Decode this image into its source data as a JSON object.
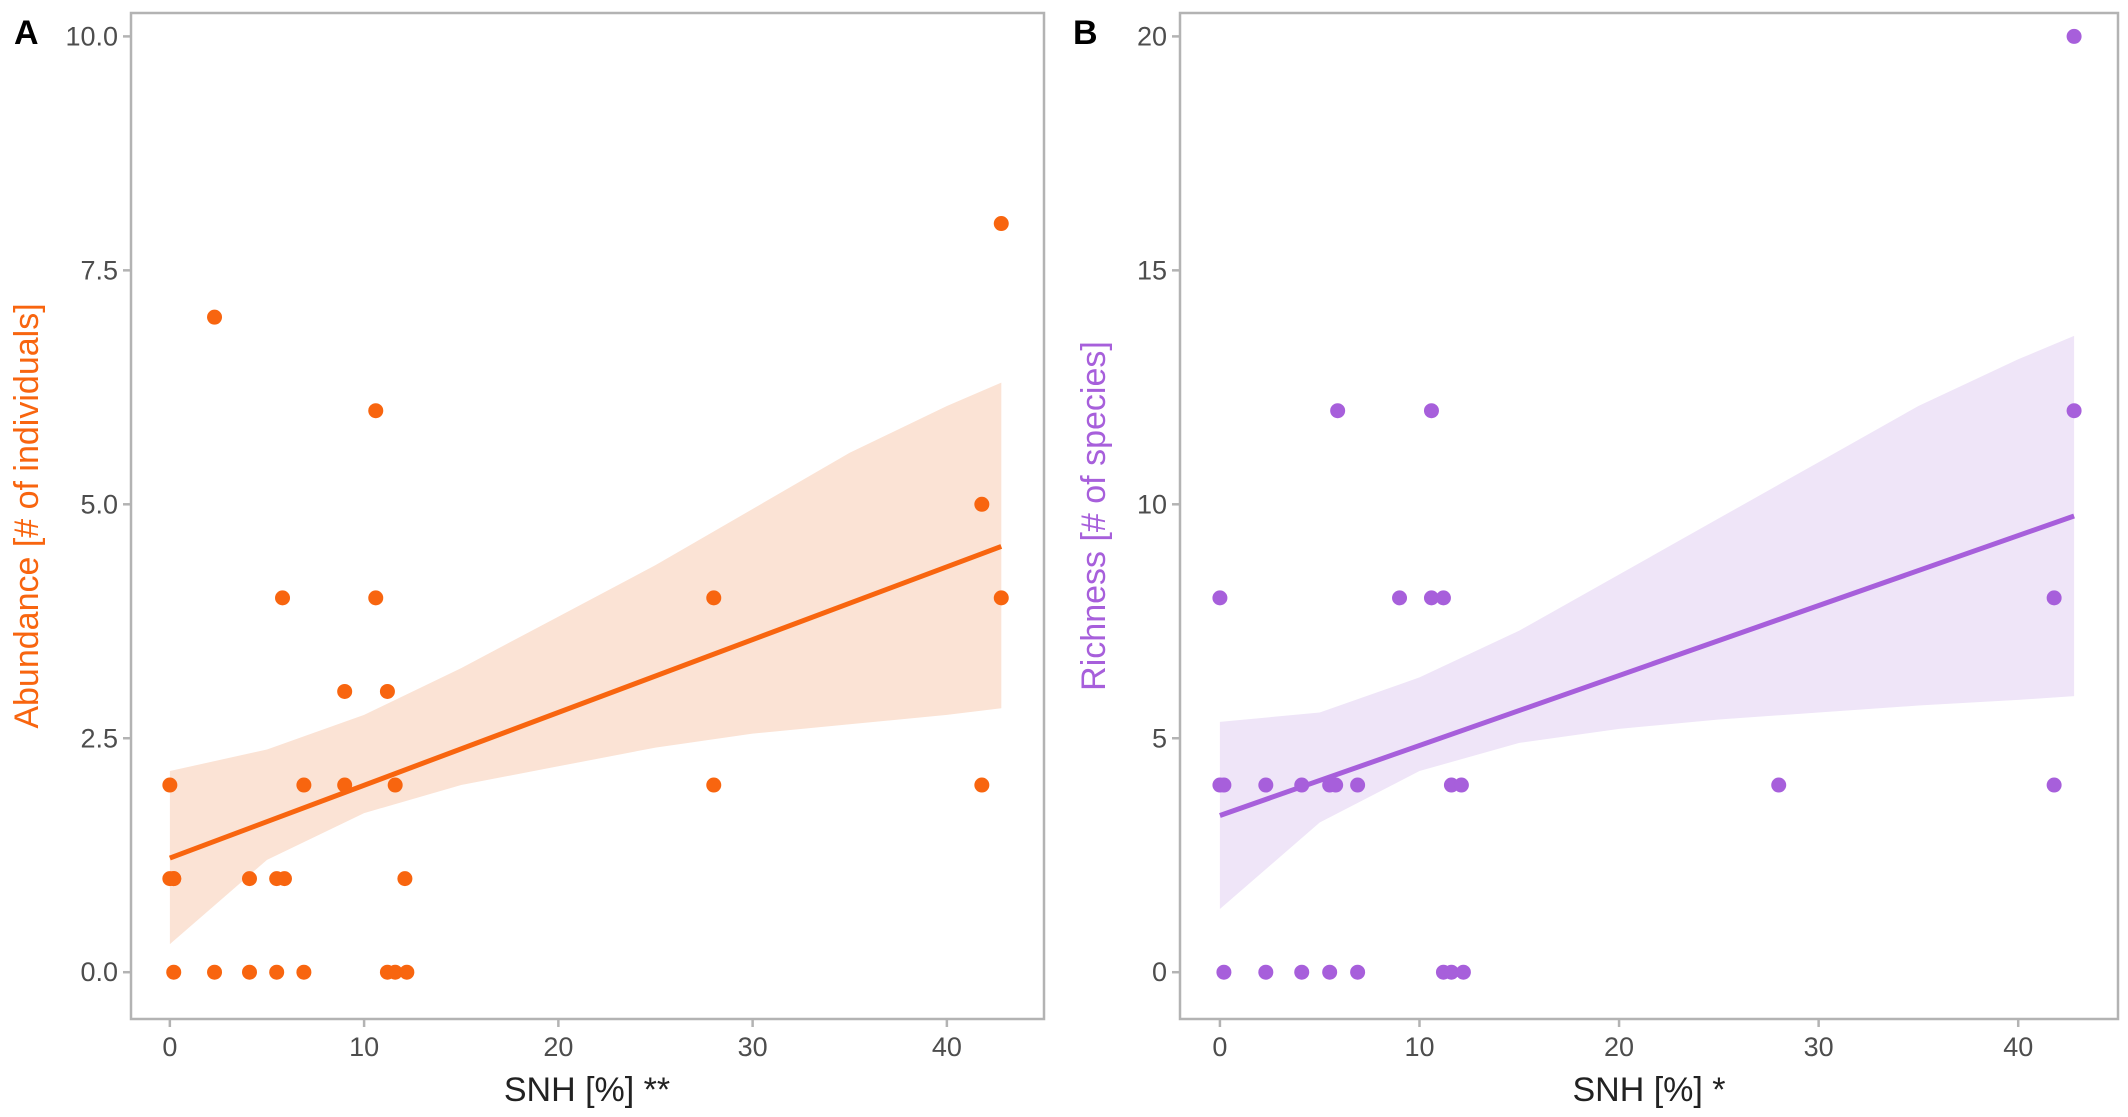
{
  "chart_data": [
    {
      "type": "scatter",
      "panel_label": "A",
      "xlabel": "SNH [%] **",
      "ylabel": "Abundance [# of individuals]",
      "xlim": [
        -2,
        45
      ],
      "ylim": [
        -0.5,
        10.25
      ],
      "xticks": [
        0,
        10,
        20,
        30,
        40
      ],
      "xtick_labels": [
        "0",
        "10",
        "20",
        "30",
        "40"
      ],
      "yticks": [
        0,
        2.5,
        5,
        7.5,
        10
      ],
      "ytick_labels": [
        "0.0",
        "2.5",
        "5.0",
        "7.5",
        "10.0"
      ],
      "grid": false,
      "color": "#f8650f",
      "band_color": "#fbe3d5",
      "points": {
        "x": [
          0.0,
          0.0,
          0.2,
          0.2,
          0.2,
          2.3,
          2.3,
          4.1,
          4.1,
          5.5,
          5.5,
          5.8,
          5.9,
          6.9,
          6.9,
          9.0,
          9.0,
          10.6,
          10.6,
          11.2,
          11.2,
          11.6,
          11.6,
          12.1,
          12.2,
          28.0,
          28.0,
          41.8,
          41.8,
          42.8,
          42.8
        ],
        "y": [
          2,
          1,
          1,
          1,
          0,
          7,
          0,
          1,
          0,
          1,
          0,
          4,
          1,
          2,
          0,
          3,
          2,
          6,
          4,
          3,
          0,
          2,
          0,
          1,
          0,
          4,
          2,
          5,
          2,
          8,
          4
        ]
      },
      "fit": {
        "x": [
          0,
          42.8
        ],
        "y": [
          1.22,
          4.55
        ]
      },
      "ci_band": {
        "x": [
          0,
          5,
          10,
          15,
          20,
          25,
          30,
          35,
          40,
          42.8
        ],
        "lower": [
          0.3,
          1.2,
          1.7,
          2.0,
          2.2,
          2.4,
          2.55,
          2.65,
          2.75,
          2.82
        ],
        "upper": [
          2.15,
          2.38,
          2.75,
          3.25,
          3.8,
          4.35,
          4.95,
          5.55,
          6.05,
          6.3
        ]
      }
    },
    {
      "type": "scatter",
      "panel_label": "B",
      "xlabel": "SNH [%] *",
      "ylabel": "Richness [# of species]",
      "xlim": [
        -2,
        45
      ],
      "ylim": [
        -1,
        20.5
      ],
      "xticks": [
        0,
        10,
        20,
        30,
        40
      ],
      "xtick_labels": [
        "0",
        "10",
        "20",
        "30",
        "40"
      ],
      "yticks": [
        0,
        5,
        10,
        15,
        20
      ],
      "ytick_labels": [
        "0",
        "5",
        "10",
        "15",
        "20"
      ],
      "grid": false,
      "color": "#a75fdb",
      "band_color": "#efe5f8",
      "points": {
        "x": [
          0.0,
          0.0,
          0.2,
          0.2,
          2.3,
          2.3,
          4.1,
          4.1,
          5.5,
          5.5,
          5.8,
          5.9,
          6.9,
          6.9,
          9.0,
          10.6,
          10.6,
          11.2,
          11.2,
          11.6,
          11.6,
          12.1,
          12.2,
          28.0,
          41.8,
          41.8,
          42.8,
          42.8
        ],
        "y": [
          8,
          4,
          4,
          0,
          4,
          0,
          4,
          0,
          4,
          0,
          4,
          12,
          4,
          0,
          8,
          12,
          8,
          8,
          0,
          4,
          0,
          4,
          0,
          4,
          8,
          4,
          20,
          12
        ]
      },
      "fit": {
        "x": [
          0,
          42.8
        ],
        "y": [
          3.35,
          9.75
        ]
      },
      "ci_band": {
        "x": [
          0,
          5,
          10,
          15,
          20,
          25,
          30,
          35,
          40,
          42.8
        ],
        "lower": [
          1.35,
          3.2,
          4.3,
          4.9,
          5.2,
          5.4,
          5.55,
          5.7,
          5.82,
          5.9
        ],
        "upper": [
          5.35,
          5.55,
          6.3,
          7.3,
          8.5,
          9.7,
          10.9,
          12.1,
          13.1,
          13.6
        ]
      }
    }
  ]
}
